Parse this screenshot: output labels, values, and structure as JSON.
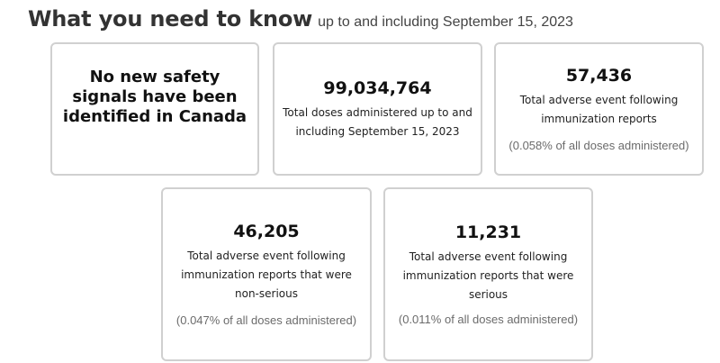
{
  "header": {
    "title": "What you need to know",
    "subtitle": "up to and including September 15, 2023"
  },
  "cards": {
    "signals": {
      "text": "No new safety signals have been identified in Canada"
    },
    "doses": {
      "number": "99,034,764",
      "description": "Total doses administered up to and including September 15, 2023"
    },
    "total_reports": {
      "number": "57,436",
      "description": "Total adverse event following immunization reports",
      "percent": "(0.058% of all doses administered)"
    },
    "non_serious": {
      "number": "46,205",
      "description": "Total adverse event following immunization reports that were non-serious",
      "percent": "(0.047% of all doses administered)"
    },
    "serious": {
      "number": "11,231",
      "description": "Total adverse event following immunization reports that were serious",
      "percent": "(0.011% of all doses administered)"
    }
  }
}
